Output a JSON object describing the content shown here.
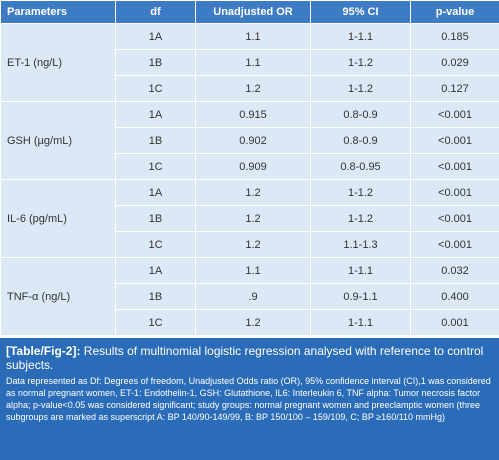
{
  "table": {
    "header": [
      "Parameters",
      "df",
      "Unadjusted OR",
      "95% CI",
      "p-value"
    ],
    "groups": [
      {
        "name": "ET-1 (ng/L)",
        "rows": [
          [
            "1A",
            "1.1",
            "1-1.1",
            "0.185"
          ],
          [
            "1B",
            "1.1",
            "1-1.2",
            "0.029"
          ],
          [
            "1C",
            "1.2",
            "1-1.2",
            "0.127"
          ]
        ]
      },
      {
        "name": "GSH (µg/mL)",
        "rows": [
          [
            "1A",
            "0.915",
            "0.8-0.9",
            "<0.001"
          ],
          [
            "1B",
            "0.902",
            "0.8-0.9",
            "<0.001"
          ],
          [
            "1C",
            "0.909",
            "0.8-0.95",
            "<0.001"
          ]
        ]
      },
      {
        "name": "IL-6 (pg/mL)",
        "rows": [
          [
            "1A",
            "1.2",
            "1-1.2",
            "<0.001"
          ],
          [
            "1B",
            "1.2",
            "1-1.2",
            "<0.001"
          ],
          [
            "1C",
            "1.2",
            "1.1-1.3",
            "<0.001"
          ]
        ]
      },
      {
        "name": "TNF-α (ng/L)",
        "rows": [
          [
            "1A",
            "1.1",
            "1-1.1",
            "0.032"
          ],
          [
            "1B",
            ".9",
            "0.9-1.1",
            "0.400"
          ],
          [
            "1C",
            "1.2",
            "1-1.1",
            "0.001"
          ]
        ]
      }
    ]
  },
  "caption": {
    "label": "[Table/Fig-2]:",
    "title": "Results of multinomial logistic regression analysed with reference to control subjects.",
    "note": "Data represented as Df: Degrees of freedom, Unadjusted Odds ratio (OR), 95% confidence interval (CI),1 was considered as normal pregnant women, ET-1: Endothelin-1, GSH: Glutathione, IL6: Interleukin 6, TNF alpha: Tumor necrosis factor alpha; p-value<0.05 was considered significant; study groups: normal pregnant women and preeclamptic women (three subgroups are marked as superscript A: BP 140/90-149/99, B: BP 150/100 – 159/109, C; BP ≥160/110 mmHg)"
  }
}
